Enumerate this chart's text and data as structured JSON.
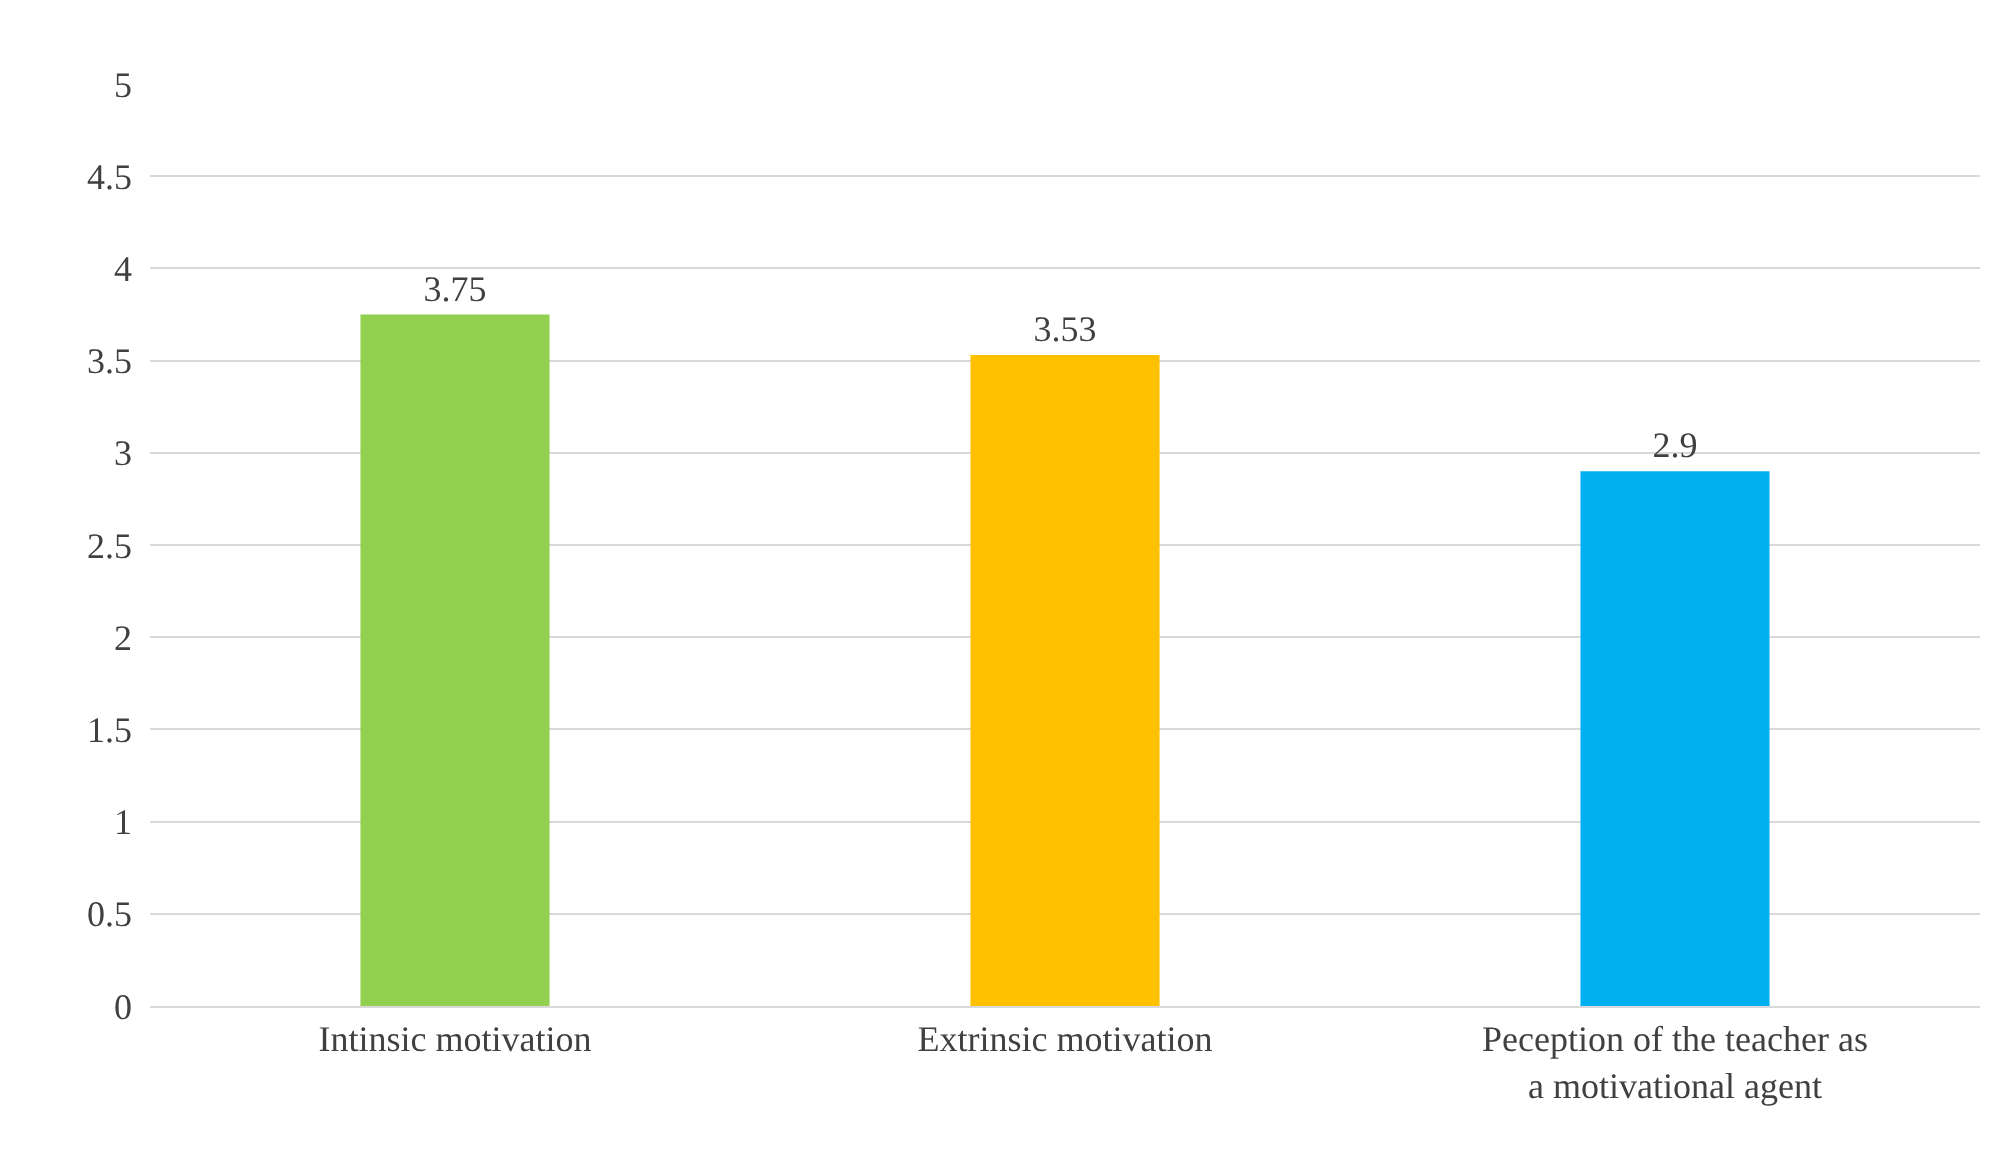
{
  "chart_data": {
    "type": "bar",
    "categories": [
      "Intinsic motivation",
      "Extrinsic motivation",
      "Peception of the teacher as a motivational agent"
    ],
    "values": [
      3.75,
      3.53,
      2.9
    ],
    "colors": [
      "#92d050",
      "#ffc000",
      "#00b0f0"
    ],
    "ylim": [
      0,
      5
    ],
    "yticks": [
      0,
      0.5,
      1,
      1.5,
      2,
      2.5,
      3,
      3.5,
      4,
      4.5,
      5
    ],
    "grid": "y",
    "data_labels": true
  }
}
